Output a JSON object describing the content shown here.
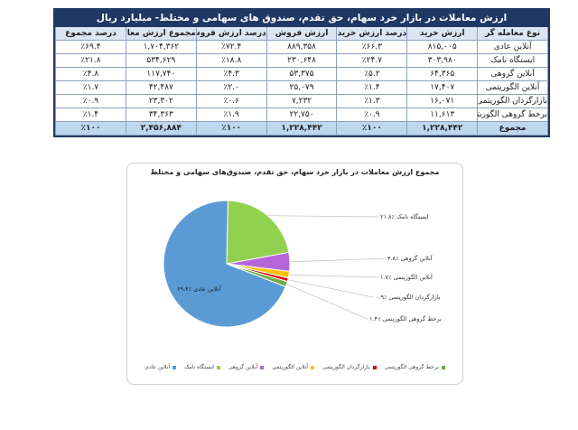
{
  "table": {
    "title": "ارزش معاملات در بازار خرد سهام، حق تقدم، صندوق های سهامی و مختلط- میلیارد ریال",
    "headers": [
      "نوع معامله گر",
      "ارزش خرید",
      "درصد ارزش خرید",
      "ارزش فروش",
      "درصد ارزش فروش",
      "مجموع ارزش معاملات",
      "درصد مجموع"
    ],
    "rows": [
      [
        "آنلاین عادی",
        "۸۱۵,۰۰۵",
        "٪۶۶.۳",
        "۸۸۹,۳۵۸",
        "٪۷۲.۴",
        "۱,۷۰۴,۳۶۲",
        "٪۶۹.۴"
      ],
      [
        "ایستگاه نامک",
        "۳۰۳,۹۸۰",
        "٪۲۴.۷",
        "۲۳۰,۶۴۸",
        "٪۱۸.۸",
        "۵۳۴,۶۲۹",
        "٪۲۱.۸"
      ],
      [
        "آنلاین گروهی",
        "۶۴,۳۶۵",
        "٪۵.۲",
        "۵۳,۳۷۵",
        "٪۴.۳",
        "۱۱۷,۷۴۰",
        "٪۴.۸"
      ],
      [
        "آنلاین الگوریتمی",
        "۱۷,۴۰۷",
        "٪۱.۴",
        "۲۵,۰۷۹",
        "٪۲.۰",
        "۴۲,۴۸۷",
        "٪۱.۷"
      ],
      [
        "بازارگردان الگوریتمی",
        "۱۶,۰۷۱",
        "٪۱.۳",
        "۷,۲۳۲",
        "٪۰.۶",
        "۲۳,۳۰۲",
        "٪۰.۹"
      ],
      [
        "برخط گروهی الگوریتمی",
        "۱۱,۶۱۳",
        "٪۰.۹",
        "۲۲,۷۵۰",
        "٪۱.۹",
        "۳۴,۳۶۳",
        "٪۱.۴"
      ]
    ],
    "total": [
      "مجموع",
      "۱,۲۲۸,۴۴۲",
      "٪۱۰۰",
      "۱,۲۲۸,۴۴۲",
      "٪۱۰۰",
      "۲,۴۵۶,۸۸۴",
      "٪۱۰۰"
    ]
  },
  "chart_data": {
    "type": "pie",
    "title": "مجموع ارزش معاملات در بازار خرد سهام، حق تقدم، صندوق‌های سهامی و مختلط",
    "categories": [
      "آنلاین عادی",
      "ایستگاه نامک",
      "آنلاین گروهی",
      "آنلاین الگوریتمی",
      "بازارگردان الگوریتمی",
      "برخط گروهی الگوریتمی"
    ],
    "values": [
      69.4,
      21.8,
      4.8,
      1.7,
      0.9,
      1.4
    ],
    "colors": [
      "#5b9bd5",
      "#92d050",
      "#b565d9",
      "#ffc000",
      "#d00000",
      "#70ad47"
    ],
    "labels": [
      "آنلاین عادی ٪۶۹.۴",
      "ایستگاه نامک ٪۲۱.۸",
      "آنلاین گروهی ٪۴.۸",
      "آنلاین الگوریتمی ٪۱.۷",
      "بازارگردان الگوریتمی ٪۰.۹",
      "برخط گروهی الگوریتمی ٪۱.۴"
    ],
    "legend_position": "bottom"
  }
}
